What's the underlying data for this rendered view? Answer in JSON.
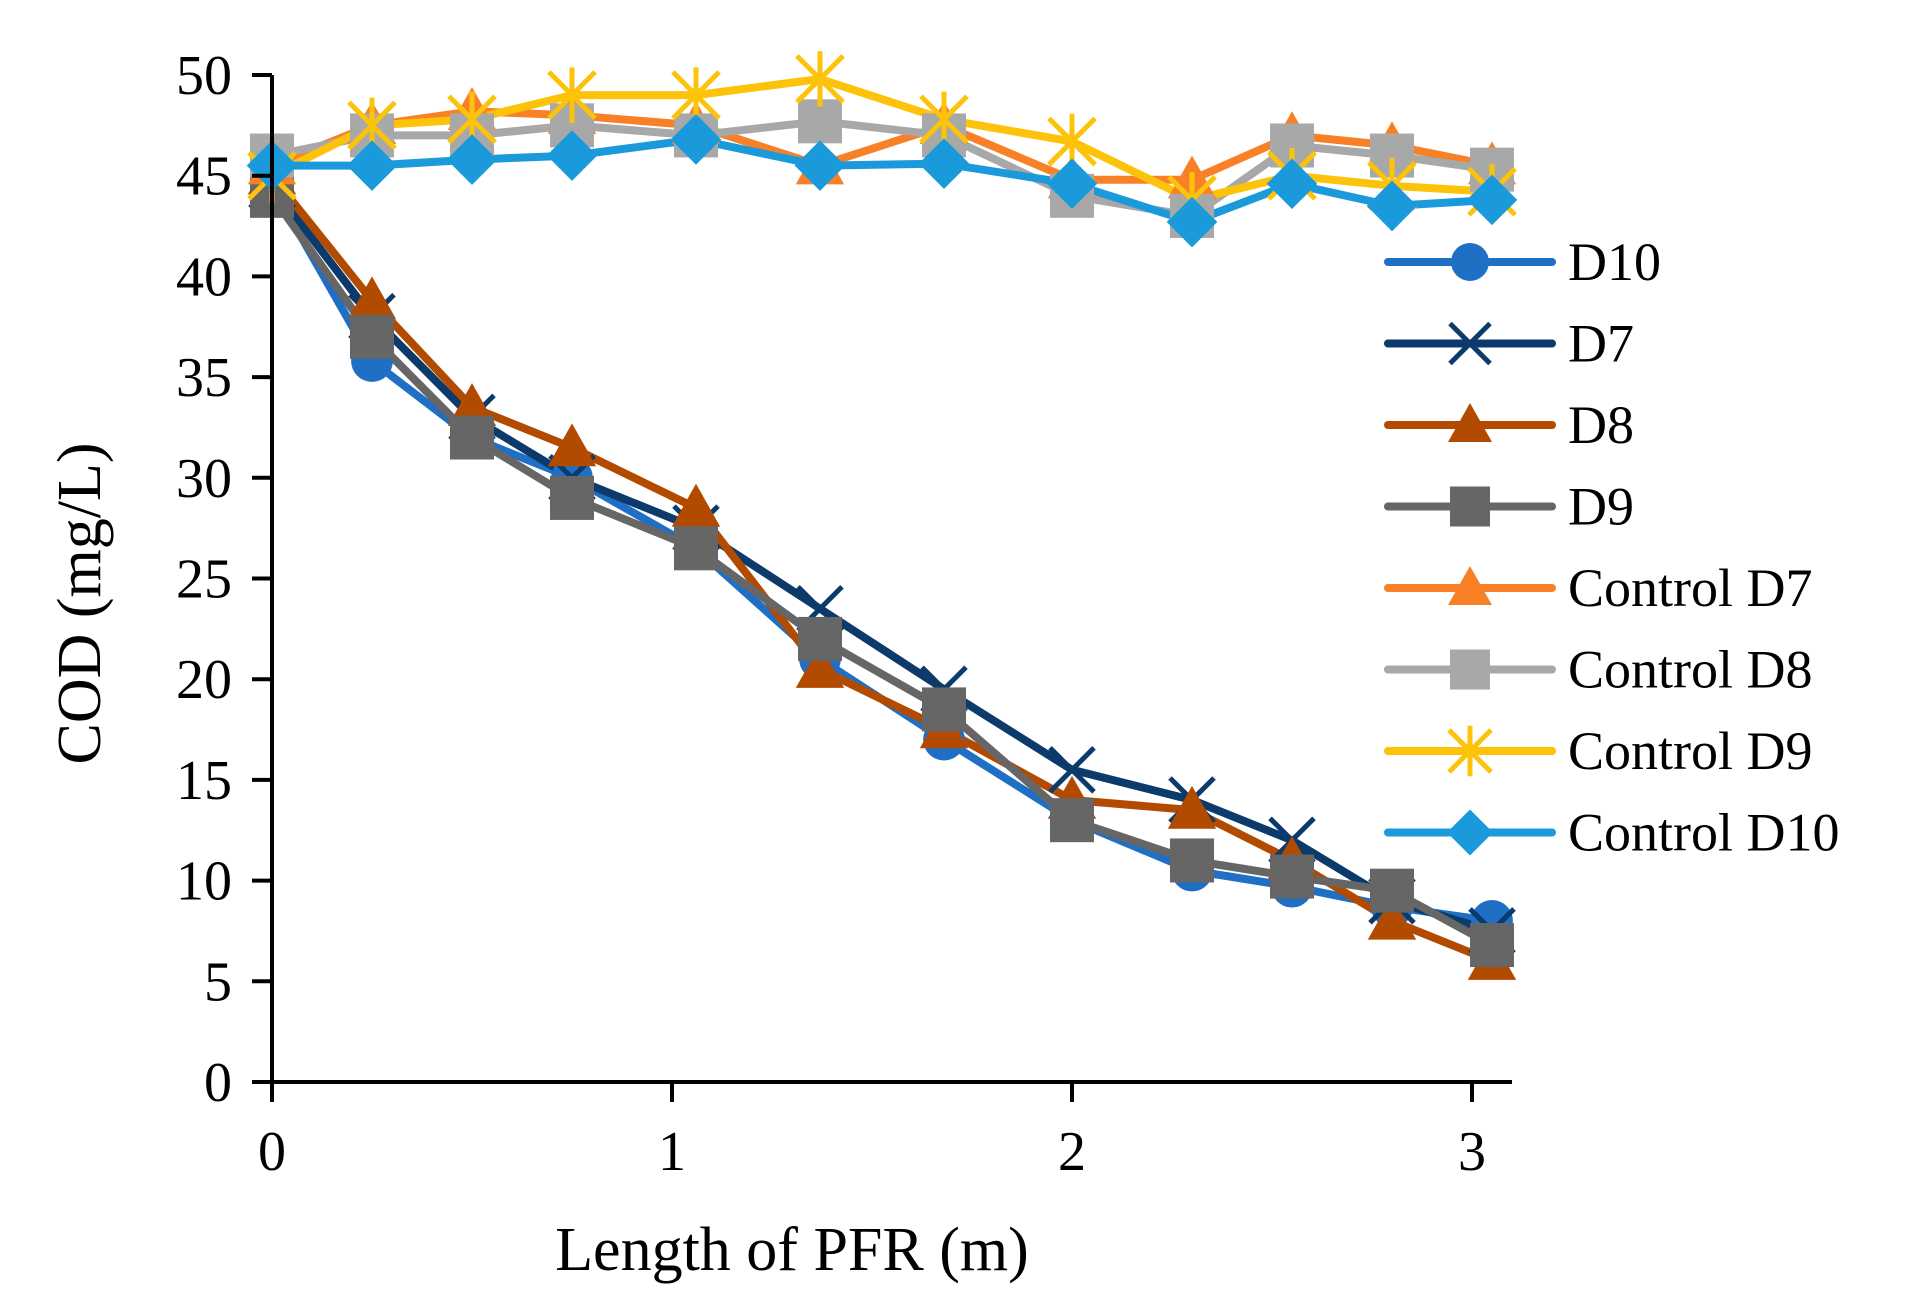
{
  "chart_data": {
    "type": "line",
    "title": "",
    "xlabel": "Length of PFR (m)",
    "ylabel": "COD (mg/L)",
    "xlim": [
      0,
      3.1
    ],
    "ylim": [
      0,
      50
    ],
    "x_ticks": [
      "0",
      "1",
      "2",
      "3"
    ],
    "y_ticks": [
      "0",
      "5",
      "10",
      "15",
      "20",
      "25",
      "30",
      "35",
      "40",
      "45",
      "50"
    ],
    "grid": false,
    "legend_position": "right",
    "x": [
      0,
      0.25,
      0.5,
      0.75,
      1.06,
      1.37,
      1.68,
      2.0,
      2.3,
      2.55,
      2.8,
      3.05
    ],
    "series": [
      {
        "name": "D10",
        "color": "#1f6fc5",
        "marker": "circle",
        "values": [
          44.5,
          35.8,
          32.0,
          30.0,
          26.5,
          21.0,
          17.0,
          13.0,
          10.5,
          9.7,
          8.7,
          8.0
        ]
      },
      {
        "name": "D7",
        "color": "#0b3a6b",
        "marker": "x",
        "values": [
          44.5,
          38.0,
          33.0,
          30.0,
          27.5,
          23.5,
          19.5,
          15.5,
          14.0,
          12.0,
          9.0,
          7.5
        ]
      },
      {
        "name": "D8",
        "color": "#b24a00",
        "marker": "triangle",
        "values": [
          45.0,
          38.8,
          33.5,
          31.5,
          28.5,
          20.5,
          17.5,
          14.0,
          13.5,
          11.0,
          8.0,
          6.0
        ]
      },
      {
        "name": "D9",
        "color": "#666666",
        "marker": "square",
        "values": [
          44.0,
          37.0,
          32.0,
          29.0,
          26.5,
          22.0,
          18.5,
          13.0,
          11.0,
          10.2,
          9.5,
          6.8
        ]
      },
      {
        "name": "Control D7",
        "color": "#f88128",
        "marker": "triangle",
        "values": [
          45.5,
          47.5,
          48.2,
          48.0,
          47.5,
          45.5,
          47.5,
          44.8,
          44.8,
          47.0,
          46.5,
          45.5
        ]
      },
      {
        "name": "Control D8",
        "color": "#a8a8a8",
        "marker": "square",
        "values": [
          46.0,
          47.0,
          47.0,
          47.5,
          47.0,
          47.7,
          47.0,
          44.0,
          43.0,
          46.5,
          46.0,
          45.3
        ]
      },
      {
        "name": "Control D9",
        "color": "#fcc30a",
        "marker": "star",
        "values": [
          45.0,
          47.5,
          47.8,
          49.0,
          49.0,
          49.8,
          47.8,
          46.7,
          43.8,
          45.0,
          44.5,
          44.2
        ]
      },
      {
        "name": "Control D10",
        "color": "#1b9adb",
        "marker": "diamond",
        "values": [
          45.5,
          45.5,
          45.8,
          46.0,
          46.8,
          45.5,
          45.6,
          44.6,
          42.7,
          44.6,
          43.5,
          43.8
        ]
      }
    ]
  }
}
